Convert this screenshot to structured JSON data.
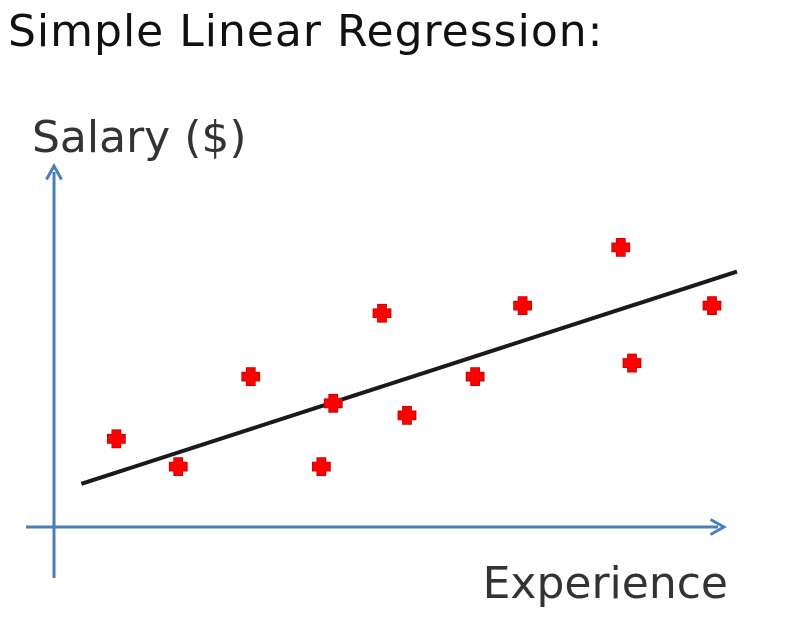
{
  "title": "Simple Linear Regression:",
  "chart_data": {
    "type": "scatter",
    "title": "Simple Linear Regression:",
    "xlabel": "Experience",
    "ylabel": "Salary ($)",
    "xlim": [
      0,
      1
    ],
    "ylim": [
      0,
      1
    ],
    "grid": false,
    "axis_color": "#4a7ebb",
    "marker_color": "#ff0000",
    "line_color": "#1a1a1a",
    "points": [
      {
        "x": 0.047,
        "y": 0.383
      },
      {
        "x": 0.146,
        "y": 0.307
      },
      {
        "x": 0.262,
        "y": 0.553
      },
      {
        "x": 0.375,
        "y": 0.307
      },
      {
        "x": 0.394,
        "y": 0.48
      },
      {
        "x": 0.472,
        "y": 0.726
      },
      {
        "x": 0.512,
        "y": 0.447
      },
      {
        "x": 0.621,
        "y": 0.553
      },
      {
        "x": 0.697,
        "y": 0.747
      },
      {
        "x": 0.854,
        "y": 0.906
      },
      {
        "x": 0.872,
        "y": 0.59
      },
      {
        "x": 1.0,
        "y": 0.747
      }
    ],
    "regression_line": {
      "start": {
        "x": -0.009,
        "y": 0.26
      },
      "end": {
        "x": 1.04,
        "y": 0.84
      }
    }
  }
}
